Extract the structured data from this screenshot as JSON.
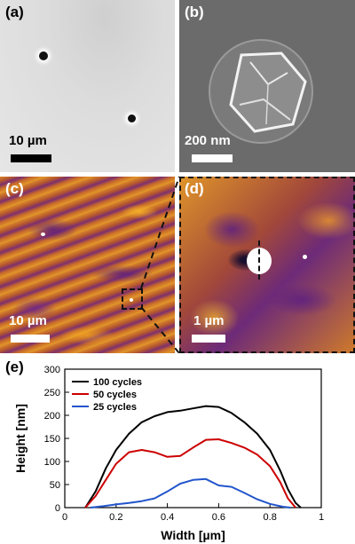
{
  "panels": {
    "a": {
      "label": "(a)",
      "scale": "10 µm"
    },
    "b": {
      "label": "(b)",
      "scale": "200 nm"
    },
    "c": {
      "label": "(c)",
      "scale": "10 µm"
    },
    "d": {
      "label": "(d)",
      "scale": "1 µm"
    },
    "e": {
      "label": "(e)"
    }
  },
  "chart_data": {
    "type": "line",
    "xlabel": "Width [µm]",
    "ylabel": "Height [nm]",
    "xlim": [
      0,
      1
    ],
    "ylim": [
      0,
      300
    ],
    "xticks": [
      "0",
      "0.2",
      "0.4",
      "0.6",
      "0.8",
      "1"
    ],
    "yticks": [
      "0",
      "50",
      "100",
      "150",
      "200",
      "250",
      "300"
    ],
    "legend_position": "top-left",
    "series": [
      {
        "name": "100 cycles",
        "color": "#000000",
        "x": [
          0.08,
          0.12,
          0.16,
          0.2,
          0.25,
          0.3,
          0.35,
          0.4,
          0.45,
          0.5,
          0.55,
          0.6,
          0.65,
          0.7,
          0.75,
          0.8,
          0.84,
          0.87,
          0.9,
          0.92
        ],
        "y": [
          0,
          35,
          85,
          125,
          160,
          185,
          198,
          207,
          210,
          215,
          220,
          218,
          205,
          185,
          160,
          125,
          80,
          40,
          10,
          0
        ]
      },
      {
        "name": "50 cycles",
        "color": "#cc0000",
        "x": [
          0.08,
          0.12,
          0.16,
          0.2,
          0.25,
          0.3,
          0.35,
          0.4,
          0.45,
          0.5,
          0.55,
          0.6,
          0.65,
          0.7,
          0.75,
          0.8,
          0.84,
          0.87,
          0.9
        ],
        "y": [
          0,
          25,
          60,
          95,
          120,
          125,
          120,
          110,
          112,
          130,
          147,
          148,
          140,
          130,
          115,
          90,
          55,
          20,
          0
        ]
      },
      {
        "name": "25 cycles",
        "color": "#2255cc",
        "x": [
          0.1,
          0.15,
          0.2,
          0.25,
          0.3,
          0.35,
          0.4,
          0.45,
          0.5,
          0.55,
          0.6,
          0.65,
          0.7,
          0.75,
          0.8,
          0.85,
          0.88
        ],
        "y": [
          0,
          3,
          7,
          10,
          14,
          20,
          35,
          52,
          60,
          62,
          48,
          45,
          32,
          18,
          8,
          2,
          0
        ]
      }
    ]
  }
}
